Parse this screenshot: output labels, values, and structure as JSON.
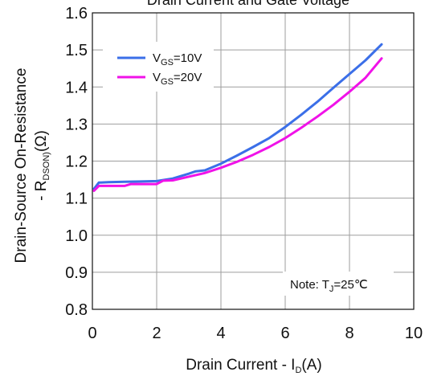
{
  "chart_data": {
    "type": "line",
    "title": "Drain Current and Gate Voltage",
    "xlabel": {
      "main": "Drain Current - I",
      "sub": "D",
      "tail": "(A)"
    },
    "ylabel": {
      "line1": "Drain-Source On-Resistance",
      "line2_main": "- R",
      "line2_sub": "DSON)",
      "line2_tail": "(Ω)"
    },
    "xlim": [
      0,
      10
    ],
    "ylim": [
      0.8,
      1.6
    ],
    "x_ticks": [
      0,
      2,
      4,
      6,
      8,
      10
    ],
    "y_ticks": [
      0.8,
      0.9,
      1.0,
      1.1,
      1.2,
      1.3,
      1.4,
      1.5,
      1.6
    ],
    "x_tick_labels": [
      "0",
      "2",
      "4",
      "6",
      "8",
      "10"
    ],
    "y_tick_labels": [
      "0.8",
      "0.9",
      "1.0",
      "1.1",
      "1.2",
      "1.3",
      "1.4",
      "1.5",
      "1.6"
    ],
    "grid": true,
    "legend_position": "top-left",
    "series": [
      {
        "name": "V_GS=10V",
        "name_main": "V",
        "name_sub": "GS",
        "name_tail": "=10V",
        "color": "#3b6fe8",
        "x": [
          0.05,
          0.2,
          0.5,
          1.0,
          1.5,
          2.0,
          2.5,
          3.0,
          3.2,
          3.5,
          4.0,
          4.5,
          5.0,
          5.5,
          6.0,
          6.5,
          7.0,
          7.5,
          8.0,
          8.5,
          9.0
        ],
        "y": [
          1.125,
          1.142,
          1.143,
          1.144,
          1.145,
          1.146,
          1.153,
          1.166,
          1.172,
          1.175,
          1.193,
          1.215,
          1.238,
          1.262,
          1.292,
          1.325,
          1.36,
          1.398,
          1.435,
          1.472,
          1.515
        ]
      },
      {
        "name": "V_GS=20V",
        "name_main": "V",
        "name_sub": "GS",
        "name_tail": "=20V",
        "color": "#f012e8",
        "x": [
          0.05,
          0.2,
          0.5,
          1.0,
          1.2,
          1.5,
          2.0,
          2.2,
          2.5,
          3.0,
          3.5,
          4.0,
          4.5,
          5.0,
          5.5,
          6.0,
          6.5,
          7.0,
          7.5,
          8.0,
          8.5,
          9.0
        ],
        "y": [
          1.12,
          1.133,
          1.133,
          1.133,
          1.138,
          1.138,
          1.138,
          1.147,
          1.148,
          1.158,
          1.168,
          1.182,
          1.198,
          1.217,
          1.238,
          1.262,
          1.29,
          1.32,
          1.352,
          1.387,
          1.425,
          1.477
        ]
      }
    ],
    "annotation": {
      "main": "Note: T",
      "sub": "J",
      "tail": "=25℃"
    }
  }
}
